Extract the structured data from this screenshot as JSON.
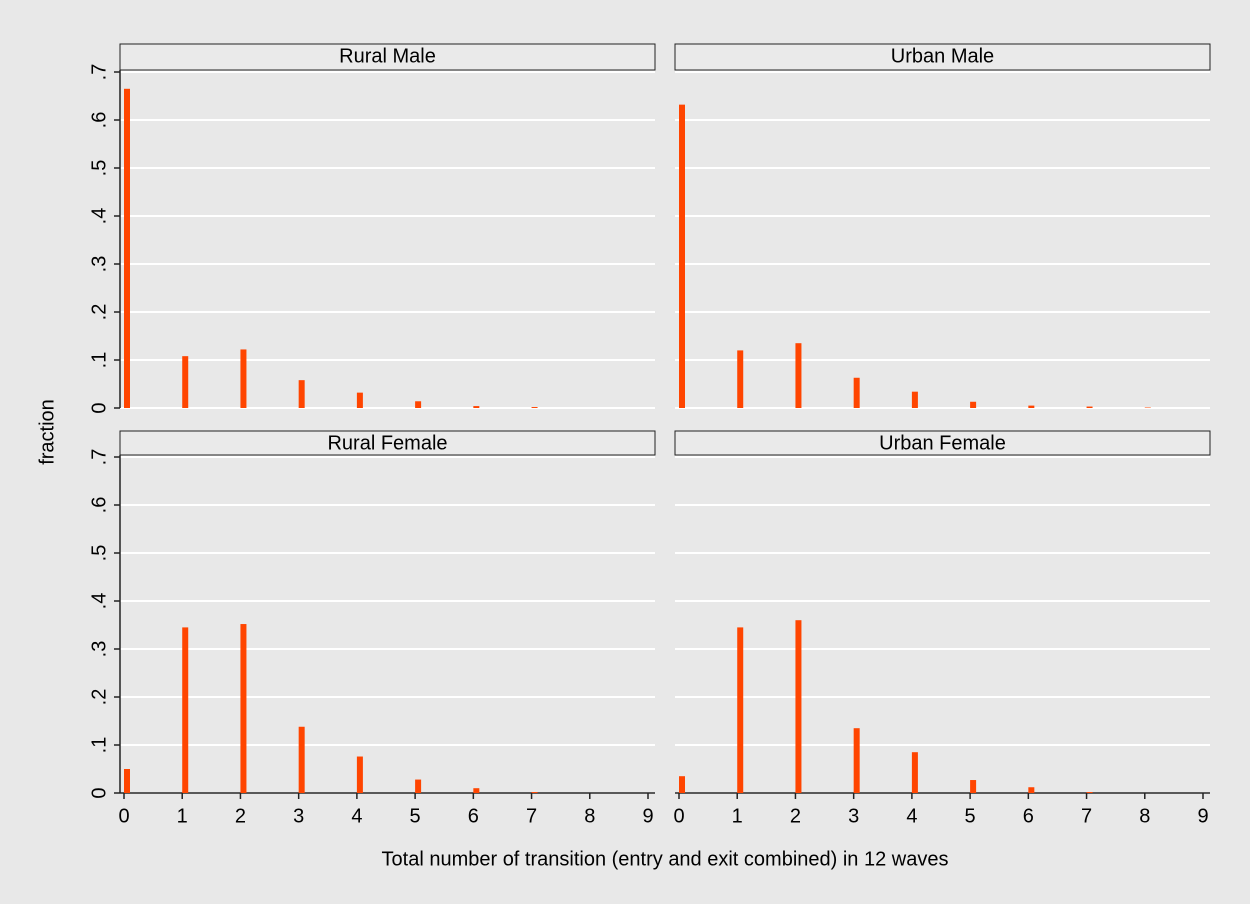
{
  "axis_labels": {
    "y": "fraction",
    "x": "Total number of transition (entry and exit combined) in 12 waves"
  },
  "chart_data": [
    {
      "type": "bar",
      "title": "Rural Male",
      "color": "#ff4500",
      "x": [
        0,
        1,
        2,
        3,
        4,
        5,
        6,
        7
      ],
      "values": [
        0.665,
        0.108,
        0.122,
        0.058,
        0.032,
        0.014,
        0.004,
        0.002
      ],
      "xlim": [
        0,
        9
      ],
      "ylim": [
        0,
        0.7
      ],
      "yticks": [
        0,
        {
          "value": 0.1,
          "label": ".1"
        },
        {
          "value": 0.2,
          "label": ".2"
        },
        {
          "value": 0.3,
          "label": ".3"
        },
        {
          "value": 0.4,
          "label": ".4"
        },
        {
          "value": 0.5,
          "label": ".5"
        },
        {
          "value": 0.6,
          "label": ".6"
        },
        {
          "value": 0.7,
          "label": ".7"
        }
      ],
      "grid": true
    },
    {
      "type": "bar",
      "title": "Urban Male",
      "color": "#ff4500",
      "x": [
        0,
        1,
        2,
        3,
        4,
        5,
        6,
        7,
        8
      ],
      "values": [
        0.632,
        0.12,
        0.135,
        0.063,
        0.034,
        0.013,
        0.005,
        0.003,
        0.001
      ],
      "xlim": [
        0,
        9
      ],
      "ylim": [
        0,
        0.7
      ],
      "yticks": [
        0,
        0.1,
        0.2,
        0.3,
        0.4,
        0.5,
        0.6,
        0.7
      ],
      "grid": true
    },
    {
      "type": "bar",
      "title": "Rural Female",
      "color": "#ff4500",
      "x": [
        0,
        1,
        2,
        3,
        4,
        5,
        6,
        7
      ],
      "values": [
        0.05,
        0.345,
        0.352,
        0.138,
        0.076,
        0.028,
        0.01,
        0.002
      ],
      "xlim": [
        0,
        9
      ],
      "xticks": [
        0,
        1,
        2,
        3,
        4,
        5,
        6,
        7,
        8,
        9
      ],
      "ylim": [
        0,
        0.7
      ],
      "yticks": [
        0,
        {
          "value": 0.1,
          "label": ".1"
        },
        {
          "value": 0.2,
          "label": ".2"
        },
        {
          "value": 0.3,
          "label": ".3"
        },
        {
          "value": 0.4,
          "label": ".4"
        },
        {
          "value": 0.5,
          "label": ".5"
        },
        {
          "value": 0.6,
          "label": ".6"
        },
        {
          "value": 0.7,
          "label": ".7"
        }
      ],
      "grid": true
    },
    {
      "type": "bar",
      "title": "Urban Female",
      "color": "#ff4500",
      "x": [
        0,
        1,
        2,
        3,
        4,
        5,
        6,
        7
      ],
      "values": [
        0.035,
        0.345,
        0.36,
        0.135,
        0.085,
        0.027,
        0.012,
        0.002
      ],
      "xlim": [
        0,
        9
      ],
      "xticks": [
        0,
        1,
        2,
        3,
        4,
        5,
        6,
        7,
        8,
        9
      ],
      "ylim": [
        0,
        0.7
      ],
      "yticks": [
        0,
        0.1,
        0.2,
        0.3,
        0.4,
        0.5,
        0.6,
        0.7
      ],
      "grid": true
    }
  ]
}
